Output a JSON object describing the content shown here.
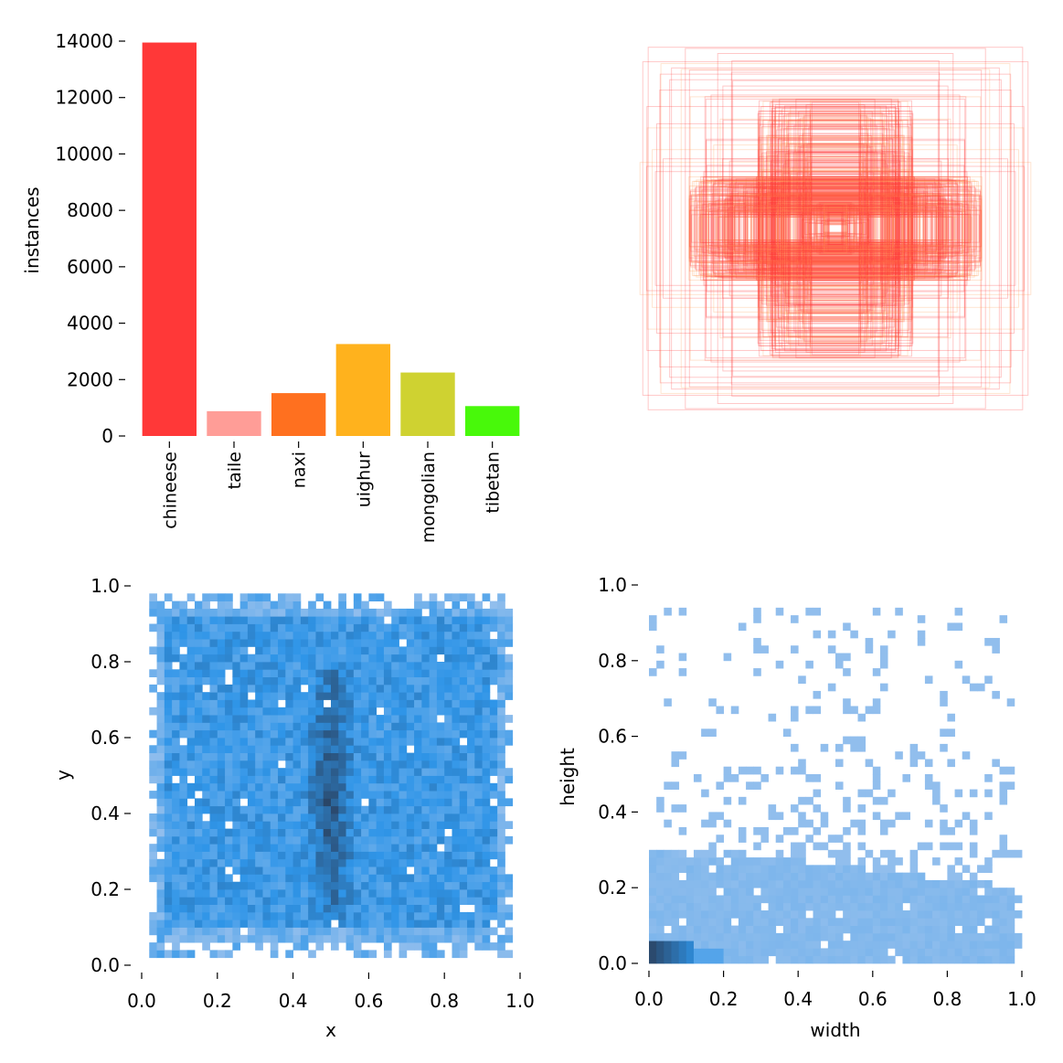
{
  "chart_data": [
    {
      "id": "class_counts",
      "type": "bar",
      "title": "",
      "xlabel": "",
      "ylabel": "instances",
      "categories": [
        "chineese",
        "taile",
        "naxi",
        "uighur",
        "mongolian",
        "tibetan"
      ],
      "values": [
        13950,
        880,
        1520,
        3260,
        2250,
        1060
      ],
      "colors": [
        "#ff3838",
        "#ff9d97",
        "#ff701f",
        "#ffb21d",
        "#cfd231",
        "#48f90a"
      ],
      "ylim": [
        0,
        14000
      ],
      "yticks": [
        0,
        2000,
        4000,
        6000,
        8000,
        10000,
        12000,
        14000
      ],
      "grid": false
    },
    {
      "id": "box_overlay",
      "type": "rectangles",
      "title": "",
      "description_values": "bounding boxes centered at (0.5, 0.5), widths 0.02–1.0, heights 0.02–1.0",
      "box_color": "#ff3838",
      "secondary_color": "#ff9d57"
    },
    {
      "id": "xy_hist",
      "type": "heatmap",
      "title": "",
      "xlabel": "x",
      "ylabel": "y",
      "xlim": [
        0,
        1
      ],
      "ylim": [
        0,
        1
      ],
      "xticks": [
        0.0,
        0.2,
        0.4,
        0.6,
        0.8,
        1.0
      ],
      "yticks": [
        0.0,
        0.2,
        0.4,
        0.6,
        0.8,
        1.0
      ],
      "tick_labels": [
        "0.0",
        "0.2",
        "0.4",
        "0.6",
        "0.8",
        "1.0"
      ],
      "bins": 50,
      "color_light": "#a9c8ee",
      "color_mid": "#2f95e8",
      "color_dark": "#2a3f5c"
    },
    {
      "id": "wh_hist",
      "type": "heatmap",
      "title": "",
      "xlabel": "width",
      "ylabel": "height",
      "xlim": [
        0,
        1
      ],
      "ylim": [
        0,
        1
      ],
      "xticks": [
        0.0,
        0.2,
        0.4,
        0.6,
        0.8,
        1.0
      ],
      "yticks": [
        0.0,
        0.2,
        0.4,
        0.6,
        0.8,
        1.0
      ],
      "tick_labels": [
        "0.0",
        "0.2",
        "0.4",
        "0.6",
        "0.8",
        "1.0"
      ],
      "bins": 50,
      "color_light": "#a9c8ee",
      "color_mid": "#2f95e8",
      "color_dark": "#2a3f5c"
    }
  ]
}
